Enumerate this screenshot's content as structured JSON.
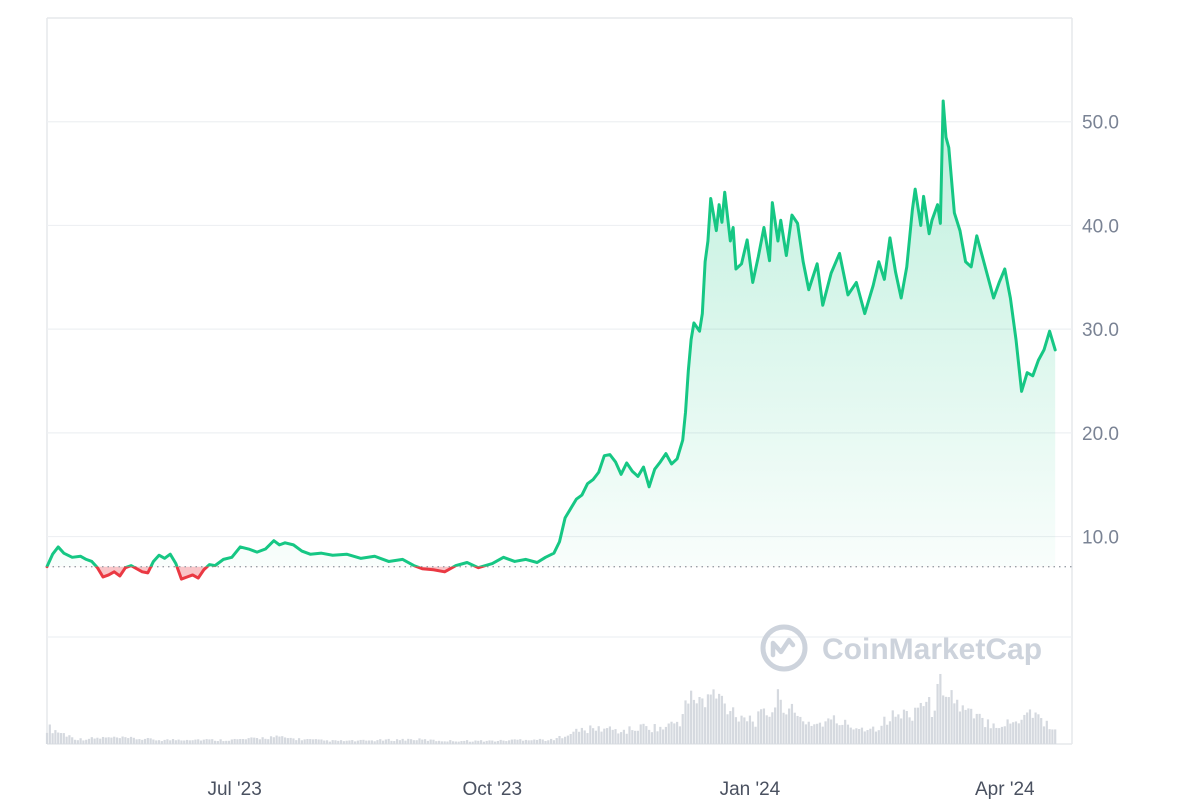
{
  "colors": {
    "up": "#16c784",
    "down": "#ea3943",
    "grid": "#eef0f3",
    "frame": "#e6e8ec",
    "baseline": "#9aa0a8",
    "volume": "#d5d9df",
    "watermark": "#cdd3dc"
  },
  "watermark": {
    "icon": "coinmarketcap-logo-icon",
    "text": "CoinMarketCap"
  },
  "chart_data": {
    "type": "area",
    "title": "",
    "xlabel": "",
    "ylabel": "",
    "ylim": [
      -10,
      60
    ],
    "yticks": [
      {
        "value": 10,
        "label": "10.0"
      },
      {
        "value": 20,
        "label": "20.0"
      },
      {
        "value": 30,
        "label": "30.0"
      },
      {
        "value": 40,
        "label": "40.0"
      },
      {
        "value": 50,
        "label": "50.0"
      }
    ],
    "xlim": [
      "2023-04-25",
      "2024-04-25"
    ],
    "xticks": [
      {
        "date": "2023-07-01",
        "label": "Jul '23"
      },
      {
        "date": "2023-10-01",
        "label": "Oct '23"
      },
      {
        "date": "2024-01-01",
        "label": "Jan '24"
      },
      {
        "date": "2024-04-01",
        "label": "Apr '24"
      }
    ],
    "baseline_value": 7.1,
    "grid": true,
    "legend": "none",
    "series": [
      {
        "points": [
          [
            "2023-04-25",
            7.1
          ],
          [
            "2023-04-27",
            8.3
          ],
          [
            "2023-04-29",
            9.0
          ],
          [
            "2023-05-01",
            8.4
          ],
          [
            "2023-05-04",
            8.0
          ],
          [
            "2023-05-07",
            8.1
          ],
          [
            "2023-05-09",
            7.8
          ],
          [
            "2023-05-11",
            7.6
          ],
          [
            "2023-05-13",
            7.0
          ],
          [
            "2023-05-15",
            6.1
          ],
          [
            "2023-05-17",
            6.3
          ],
          [
            "2023-05-19",
            6.6
          ],
          [
            "2023-05-21",
            6.2
          ],
          [
            "2023-05-23",
            7.0
          ],
          [
            "2023-05-25",
            7.2
          ],
          [
            "2023-05-27",
            6.9
          ],
          [
            "2023-05-29",
            6.6
          ],
          [
            "2023-05-31",
            6.5
          ],
          [
            "2023-06-02",
            7.6
          ],
          [
            "2023-06-04",
            8.2
          ],
          [
            "2023-06-06",
            7.9
          ],
          [
            "2023-06-08",
            8.3
          ],
          [
            "2023-06-10",
            7.4
          ],
          [
            "2023-06-12",
            5.9
          ],
          [
            "2023-06-14",
            6.1
          ],
          [
            "2023-06-16",
            6.3
          ],
          [
            "2023-06-18",
            6.0
          ],
          [
            "2023-06-20",
            6.8
          ],
          [
            "2023-06-22",
            7.3
          ],
          [
            "2023-06-24",
            7.2
          ],
          [
            "2023-06-27",
            7.8
          ],
          [
            "2023-06-30",
            8.0
          ],
          [
            "2023-07-03",
            9.0
          ],
          [
            "2023-07-06",
            8.8
          ],
          [
            "2023-07-09",
            8.5
          ],
          [
            "2023-07-12",
            8.8
          ],
          [
            "2023-07-15",
            9.6
          ],
          [
            "2023-07-17",
            9.2
          ],
          [
            "2023-07-19",
            9.4
          ],
          [
            "2023-07-22",
            9.2
          ],
          [
            "2023-07-25",
            8.6
          ],
          [
            "2023-07-28",
            8.3
          ],
          [
            "2023-08-01",
            8.4
          ],
          [
            "2023-08-05",
            8.2
          ],
          [
            "2023-08-10",
            8.3
          ],
          [
            "2023-08-15",
            7.9
          ],
          [
            "2023-08-20",
            8.1
          ],
          [
            "2023-08-25",
            7.6
          ],
          [
            "2023-08-30",
            7.8
          ],
          [
            "2023-09-03",
            7.2
          ],
          [
            "2023-09-06",
            6.9
          ],
          [
            "2023-09-10",
            6.8
          ],
          [
            "2023-09-14",
            6.6
          ],
          [
            "2023-09-18",
            7.2
          ],
          [
            "2023-09-22",
            7.5
          ],
          [
            "2023-09-26",
            7.0
          ],
          [
            "2023-10-01",
            7.4
          ],
          [
            "2023-10-05",
            8.0
          ],
          [
            "2023-10-09",
            7.6
          ],
          [
            "2023-10-13",
            7.8
          ],
          [
            "2023-10-17",
            7.5
          ],
          [
            "2023-10-20",
            8.0
          ],
          [
            "2023-10-23",
            8.4
          ],
          [
            "2023-10-25",
            9.5
          ],
          [
            "2023-10-27",
            11.8
          ],
          [
            "2023-10-29",
            12.7
          ],
          [
            "2023-10-31",
            13.6
          ],
          [
            "2023-11-02",
            14.0
          ],
          [
            "2023-11-04",
            15.1
          ],
          [
            "2023-11-06",
            15.5
          ],
          [
            "2023-11-08",
            16.2
          ],
          [
            "2023-11-10",
            17.8
          ],
          [
            "2023-11-12",
            17.9
          ],
          [
            "2023-11-14",
            17.2
          ],
          [
            "2023-11-16",
            16.0
          ],
          [
            "2023-11-18",
            17.1
          ],
          [
            "2023-11-20",
            16.3
          ],
          [
            "2023-11-22",
            15.8
          ],
          [
            "2023-11-24",
            16.7
          ],
          [
            "2023-11-26",
            14.8
          ],
          [
            "2023-11-28",
            16.5
          ],
          [
            "2023-11-30",
            17.2
          ],
          [
            "2023-12-02",
            18.0
          ],
          [
            "2023-12-04",
            17.0
          ],
          [
            "2023-12-06",
            17.5
          ],
          [
            "2023-12-08",
            19.3
          ],
          [
            "2023-12-09",
            22.0
          ],
          [
            "2023-12-10",
            26.0
          ],
          [
            "2023-12-11",
            29.0
          ],
          [
            "2023-12-12",
            30.6
          ],
          [
            "2023-12-14",
            29.8
          ],
          [
            "2023-12-15",
            31.5
          ],
          [
            "2023-12-16",
            36.5
          ],
          [
            "2023-12-17",
            38.5
          ],
          [
            "2023-12-18",
            42.6
          ],
          [
            "2023-12-20",
            39.5
          ],
          [
            "2023-12-21",
            42.0
          ],
          [
            "2023-12-22",
            40.3
          ],
          [
            "2023-12-23",
            43.2
          ],
          [
            "2023-12-25",
            38.5
          ],
          [
            "2023-12-26",
            39.8
          ],
          [
            "2023-12-27",
            35.8
          ],
          [
            "2023-12-29",
            36.3
          ],
          [
            "2023-12-31",
            38.6
          ],
          [
            "2024-01-02",
            34.5
          ],
          [
            "2024-01-04",
            37.0
          ],
          [
            "2024-01-06",
            39.8
          ],
          [
            "2024-01-08",
            36.6
          ],
          [
            "2024-01-09",
            42.2
          ],
          [
            "2024-01-11",
            38.5
          ],
          [
            "2024-01-12",
            40.5
          ],
          [
            "2024-01-14",
            37.1
          ],
          [
            "2024-01-16",
            41.0
          ],
          [
            "2024-01-18",
            40.2
          ],
          [
            "2024-01-20",
            36.5
          ],
          [
            "2024-01-22",
            33.8
          ],
          [
            "2024-01-25",
            36.3
          ],
          [
            "2024-01-27",
            32.3
          ],
          [
            "2024-01-30",
            35.4
          ],
          [
            "2024-02-02",
            37.3
          ],
          [
            "2024-02-05",
            33.3
          ],
          [
            "2024-02-08",
            34.5
          ],
          [
            "2024-02-11",
            31.5
          ],
          [
            "2024-02-14",
            34.2
          ],
          [
            "2024-02-16",
            36.5
          ],
          [
            "2024-02-18",
            34.8
          ],
          [
            "2024-02-20",
            38.8
          ],
          [
            "2024-02-22",
            35.5
          ],
          [
            "2024-02-24",
            33.0
          ],
          [
            "2024-02-26",
            36.0
          ],
          [
            "2024-02-28",
            41.5
          ],
          [
            "2024-02-29",
            43.5
          ],
          [
            "2024-03-02",
            40.0
          ],
          [
            "2024-03-03",
            42.8
          ],
          [
            "2024-03-05",
            39.2
          ],
          [
            "2024-03-06",
            40.5
          ],
          [
            "2024-03-08",
            42.0
          ],
          [
            "2024-03-09",
            40.2
          ],
          [
            "2024-03-10",
            52.0
          ],
          [
            "2024-03-11",
            48.5
          ],
          [
            "2024-03-12",
            47.5
          ],
          [
            "2024-03-14",
            41.2
          ],
          [
            "2024-03-16",
            39.5
          ],
          [
            "2024-03-18",
            36.5
          ],
          [
            "2024-03-20",
            36.0
          ],
          [
            "2024-03-22",
            39.0
          ],
          [
            "2024-03-24",
            37.0
          ],
          [
            "2024-03-26",
            35.0
          ],
          [
            "2024-03-28",
            33.0
          ],
          [
            "2024-03-30",
            34.5
          ],
          [
            "2024-04-01",
            35.8
          ],
          [
            "2024-04-03",
            33.0
          ],
          [
            "2024-04-05",
            29.0
          ],
          [
            "2024-04-07",
            24.0
          ],
          [
            "2024-04-09",
            25.8
          ],
          [
            "2024-04-11",
            25.5
          ],
          [
            "2024-04-13",
            27.0
          ],
          [
            "2024-04-15",
            28.0
          ],
          [
            "2024-04-17",
            29.8
          ],
          [
            "2024-04-19",
            28.0
          ]
        ]
      }
    ],
    "volume": {
      "type": "bar",
      "visible": true,
      "axis_labels": false,
      "points": [
        [
          "2023-04-26",
          0.2
        ],
        [
          "2023-05-06",
          0.06
        ],
        [
          "2023-05-16",
          0.08
        ],
        [
          "2023-05-26",
          0.07
        ],
        [
          "2023-06-05",
          0.05
        ],
        [
          "2023-06-15",
          0.06
        ],
        [
          "2023-06-25",
          0.05
        ],
        [
          "2023-07-05",
          0.06
        ],
        [
          "2023-07-15",
          0.09
        ],
        [
          "2023-07-25",
          0.06
        ],
        [
          "2023-08-04",
          0.04
        ],
        [
          "2023-08-14",
          0.04
        ],
        [
          "2023-08-24",
          0.05
        ],
        [
          "2023-09-03",
          0.06
        ],
        [
          "2023-09-13",
          0.04
        ],
        [
          "2023-09-23",
          0.04
        ],
        [
          "2023-10-03",
          0.04
        ],
        [
          "2023-10-13",
          0.06
        ],
        [
          "2023-10-23",
          0.05
        ],
        [
          "2023-10-28",
          0.14
        ],
        [
          "2023-11-03",
          0.18
        ],
        [
          "2023-11-10",
          0.2
        ],
        [
          "2023-11-17",
          0.16
        ],
        [
          "2023-11-24",
          0.22
        ],
        [
          "2023-12-01",
          0.2
        ],
        [
          "2023-12-07",
          0.3
        ],
        [
          "2023-12-10",
          0.55
        ],
        [
          "2023-12-13",
          0.6
        ],
        [
          "2023-12-16",
          0.5
        ],
        [
          "2023-12-19",
          0.65
        ],
        [
          "2023-12-22",
          0.55
        ],
        [
          "2023-12-27",
          0.4
        ],
        [
          "2024-01-03",
          0.3
        ],
        [
          "2024-01-09",
          0.45
        ],
        [
          "2024-01-12",
          0.6
        ],
        [
          "2024-01-17",
          0.35
        ],
        [
          "2024-01-24",
          0.25
        ],
        [
          "2024-01-31",
          0.3
        ],
        [
          "2024-02-07",
          0.22
        ],
        [
          "2024-02-14",
          0.2
        ],
        [
          "2024-02-21",
          0.35
        ],
        [
          "2024-02-28",
          0.4
        ],
        [
          "2024-03-02",
          0.55
        ],
        [
          "2024-03-06",
          0.45
        ],
        [
          "2024-03-09",
          0.72
        ],
        [
          "2024-03-11",
          0.8
        ],
        [
          "2024-03-14",
          0.55
        ],
        [
          "2024-03-18",
          0.4
        ],
        [
          "2024-03-24",
          0.3
        ],
        [
          "2024-03-31",
          0.25
        ],
        [
          "2024-04-05",
          0.28
        ],
        [
          "2024-04-09",
          0.45
        ],
        [
          "2024-04-13",
          0.35
        ],
        [
          "2024-04-18",
          0.2
        ]
      ]
    }
  }
}
